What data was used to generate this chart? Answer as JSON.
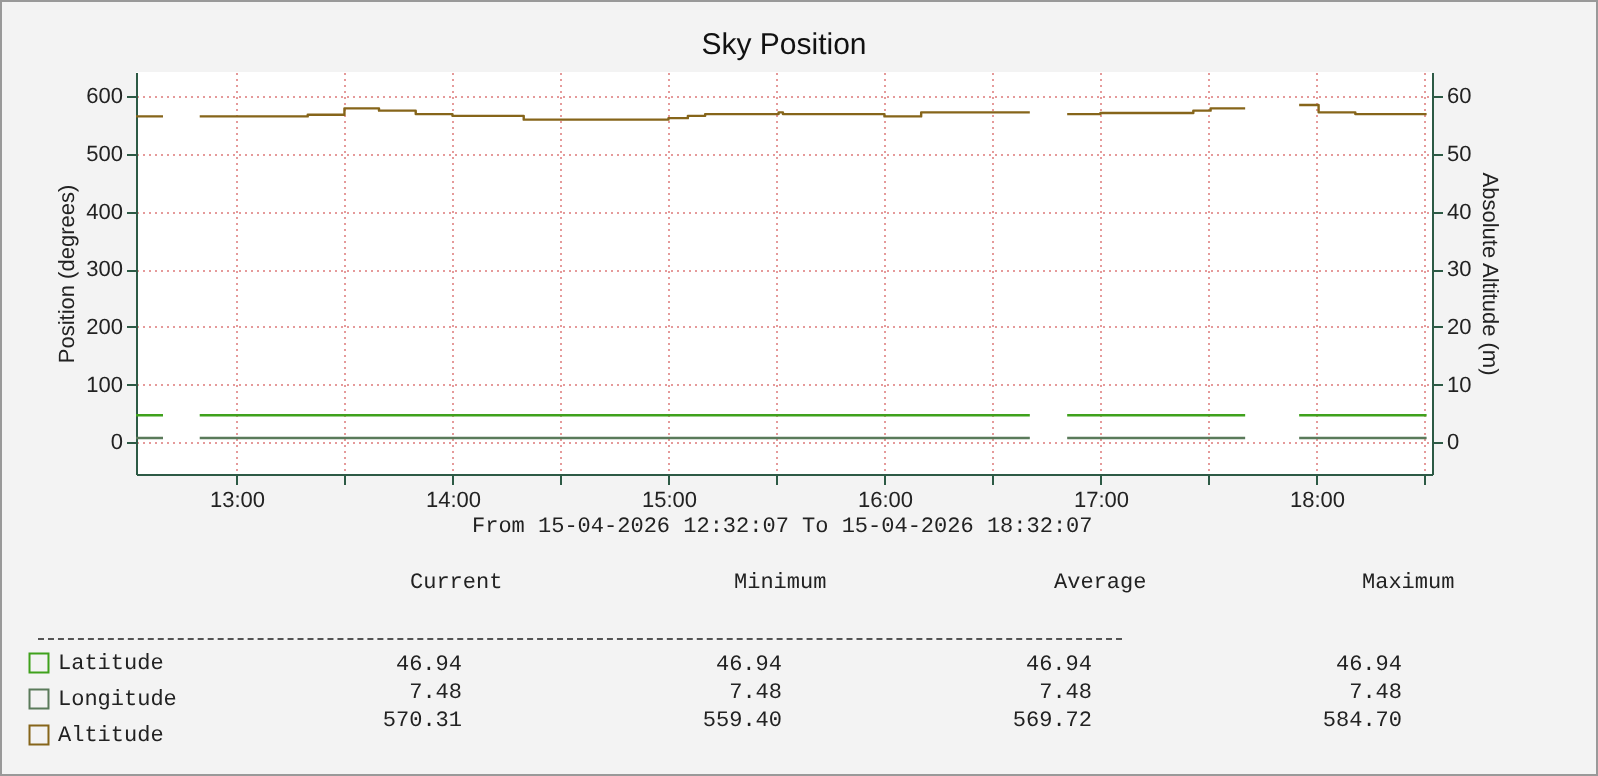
{
  "chart_data": {
    "type": "step",
    "title": "Sky Position",
    "ylabel": "Position (degrees)",
    "y2label": "Absolute Altitude (m)",
    "xlim": [
      12.535,
      18.535
    ],
    "ylim": [
      -55,
      642
    ],
    "y2lim": [
      -5.5,
      64.2
    ],
    "xticks": [
      {
        "value": 13,
        "label": "13:00"
      },
      {
        "value": 13.5,
        "label": null
      },
      {
        "value": 14,
        "label": "14:00"
      },
      {
        "value": 14.5,
        "label": null
      },
      {
        "value": 15,
        "label": "15:00"
      },
      {
        "value": 15.5,
        "label": null
      },
      {
        "value": 16,
        "label": "16:00"
      },
      {
        "value": 16.5,
        "label": null
      },
      {
        "value": 17,
        "label": "17:00"
      },
      {
        "value": 17.5,
        "label": null
      },
      {
        "value": 18,
        "label": "18:00"
      },
      {
        "value": 18.5,
        "label": null
      }
    ],
    "yticks": [
      0,
      100,
      200,
      300,
      400,
      500,
      600
    ],
    "y2ticks": [
      0,
      10,
      20,
      30,
      40,
      50,
      60
    ],
    "grid": true,
    "legend": "bottom left",
    "series": [
      {
        "name": "Latitude",
        "color": "#3fa11c",
        "x": [
          12.535,
          12.66,
          12.7,
          12.83,
          16.673,
          16.7,
          16.846,
          17.67,
          17.7,
          17.92,
          18.51
        ],
        "values": [
          46.94,
          46.94,
          null,
          46.94,
          46.94,
          null,
          46.94,
          46.94,
          null,
          46.94,
          46.94
        ]
      },
      {
        "name": "Longitude",
        "color": "#5a7a5a",
        "x": [
          12.535,
          12.66,
          12.7,
          12.83,
          16.673,
          16.7,
          16.846,
          17.67,
          17.7,
          17.92,
          18.51
        ],
        "values": [
          7.48,
          7.48,
          null,
          7.48,
          7.48,
          null,
          7.48,
          7.48,
          null,
          7.48,
          7.48
        ]
      },
      {
        "name": "Altitude",
        "color": "#86651a",
        "x": [
          12.535,
          12.66,
          12.7,
          12.83,
          13.33,
          13.5,
          13.66,
          13.83,
          14.0,
          14.33,
          15.0,
          15.09,
          15.17,
          15.51,
          15.53,
          16.0,
          16.17,
          16.673,
          16.7,
          16.846,
          17.0,
          17.43,
          17.51,
          17.67,
          17.7,
          17.92,
          18.01,
          18.18,
          18.51
        ],
        "values": [
          565,
          565,
          null,
          565,
          568,
          579,
          575,
          569,
          566,
          559.4,
          562,
          566,
          569,
          572,
          569,
          565,
          572,
          572,
          null,
          569,
          571,
          575,
          579,
          579,
          null,
          584.7,
          572,
          569,
          569
        ]
      }
    ],
    "annotations": [
      "From 15-04-2026 12:32:07 To 15-04-2026 18:32:07",
      "Current",
      "Minimum",
      "Average",
      "Maximum",
      "46.94",
      "46.94",
      "46.94",
      "46.94",
      "7.48",
      "7.48",
      "7.48",
      "7.48",
      "570.31",
      "559.40",
      "569.72",
      "584.70"
    ]
  }
}
